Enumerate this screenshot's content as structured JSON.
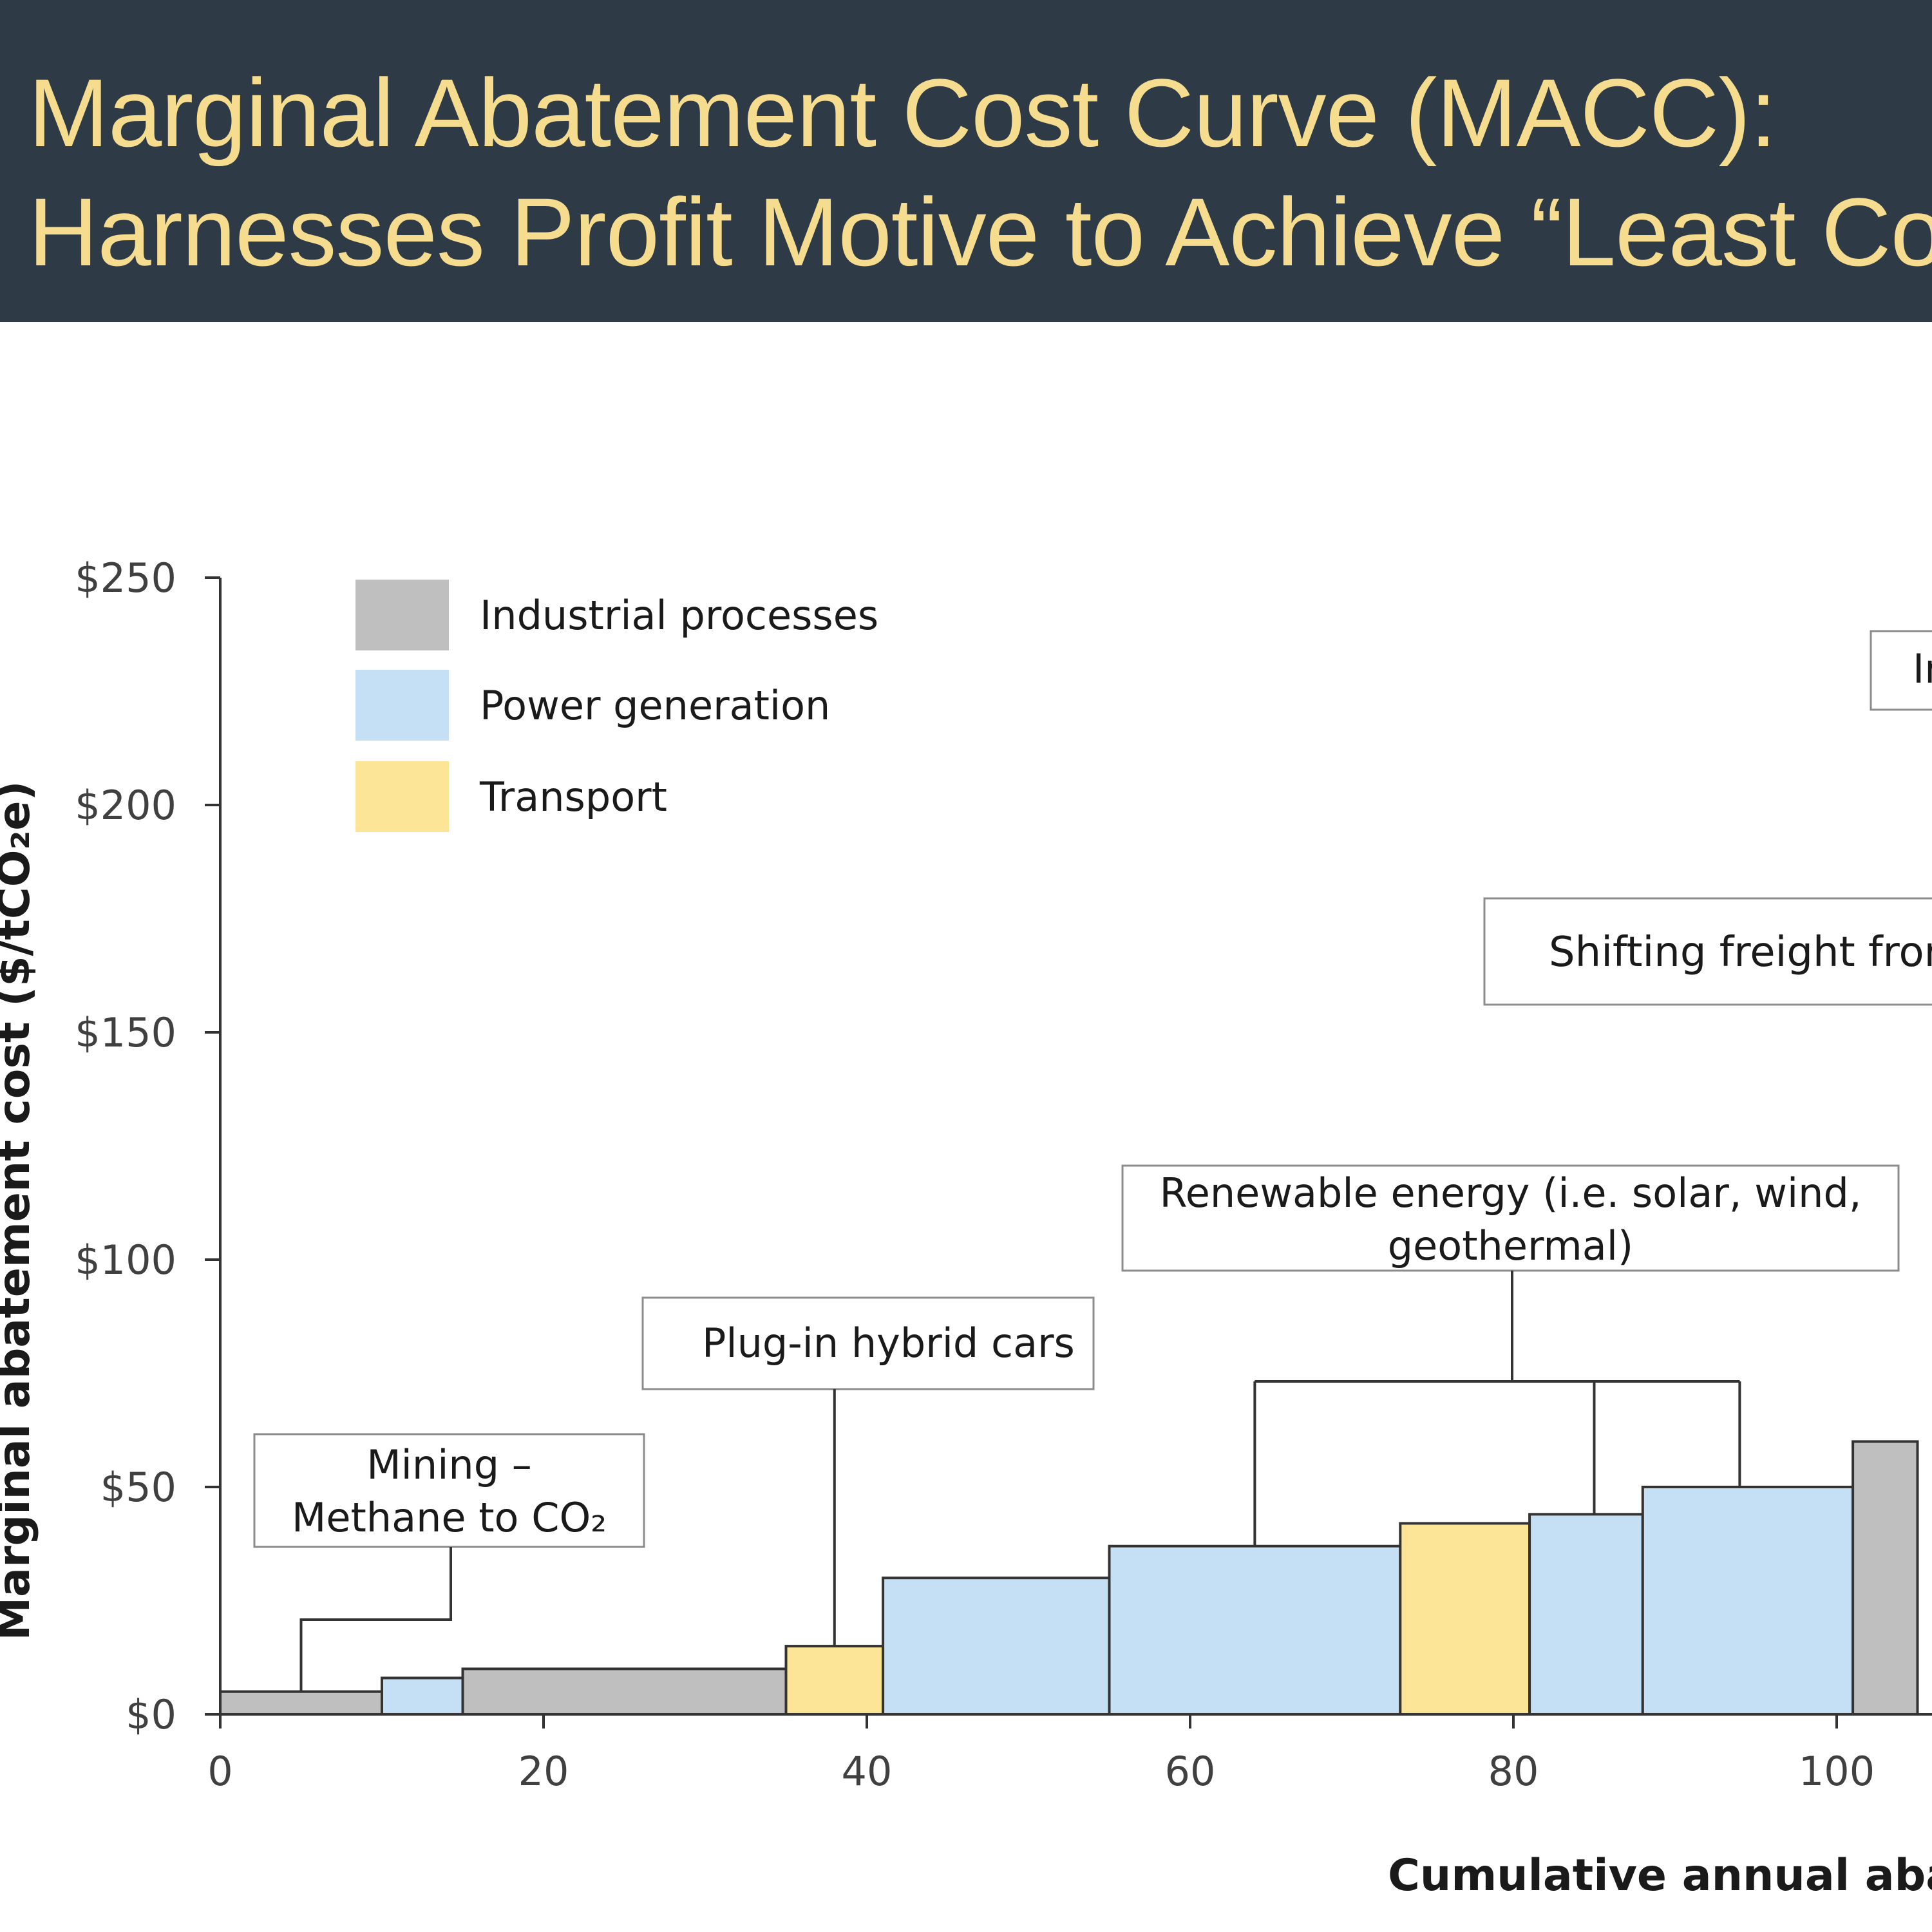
{
  "header": {
    "title_line1": "Marginal Abatement Cost Curve (MACC):",
    "title_line2": "Harnesses Profit Motive to Achieve “Least Co",
    "background_color": "#2e3b47",
    "title_color": "#f6dc8e"
  },
  "chart_data": {
    "type": "bar",
    "subtype": "variable-width step (MACC)",
    "ylabel": "Marginal abatement cost ($/tCO₂e)",
    "xlabel": "Cumulative annual aba",
    "ylim": [
      0,
      250
    ],
    "xlim_visible": [
      0,
      105
    ],
    "y_ticks": [
      0,
      50,
      100,
      150,
      200,
      250
    ],
    "y_tick_labels": [
      "$0",
      "$50",
      "$100",
      "$150",
      "$200",
      "$250"
    ],
    "x_ticks": [
      0,
      20,
      40,
      60,
      80,
      100
    ],
    "x_tick_labels": [
      "0",
      "20",
      "40",
      "60",
      "80",
      "100"
    ],
    "legend": [
      {
        "label": "Industrial processes",
        "color": "#bfbfbf"
      },
      {
        "label": "Power generation",
        "color": "#c5dff4"
      },
      {
        "label": "Transport",
        "color": "#fde597"
      }
    ],
    "bars": [
      {
        "x0": 0,
        "x1": 10,
        "cost": 5,
        "sector": "Industrial processes"
      },
      {
        "x0": 10,
        "x1": 15,
        "cost": 8,
        "sector": "Power generation"
      },
      {
        "x0": 15,
        "x1": 35,
        "cost": 10,
        "sector": "Industrial processes"
      },
      {
        "x0": 35,
        "x1": 41,
        "cost": 15,
        "sector": "Transport"
      },
      {
        "x0": 41,
        "x1": 55,
        "cost": 30,
        "sector": "Power generation"
      },
      {
        "x0": 55,
        "x1": 73,
        "cost": 37,
        "sector": "Power generation"
      },
      {
        "x0": 73,
        "x1": 81,
        "cost": 42,
        "sector": "Transport"
      },
      {
        "x0": 81,
        "x1": 88,
        "cost": 44,
        "sector": "Power generation"
      },
      {
        "x0": 88,
        "x1": 101,
        "cost": 50,
        "sector": "Power generation"
      },
      {
        "x0": 101,
        "x1": 105,
        "cost": 60,
        "sector": "Industrial processes"
      }
    ],
    "annotations": [
      {
        "lines": [
          "Mining –",
          "Methane to CO₂"
        ],
        "targets": [
          5
        ]
      },
      {
        "lines": [
          "Plug-in hybrid cars"
        ],
        "targets": [
          38
        ]
      },
      {
        "lines": [
          "Renewable energy (i.e. solar, wind,",
          "geothermal)"
        ],
        "targets": [
          64,
          85,
          94
        ]
      },
      {
        "lines": [
          "Shifting freight fron"
        ],
        "targets": []
      },
      {
        "lines": [
          "In"
        ],
        "targets": []
      }
    ]
  }
}
